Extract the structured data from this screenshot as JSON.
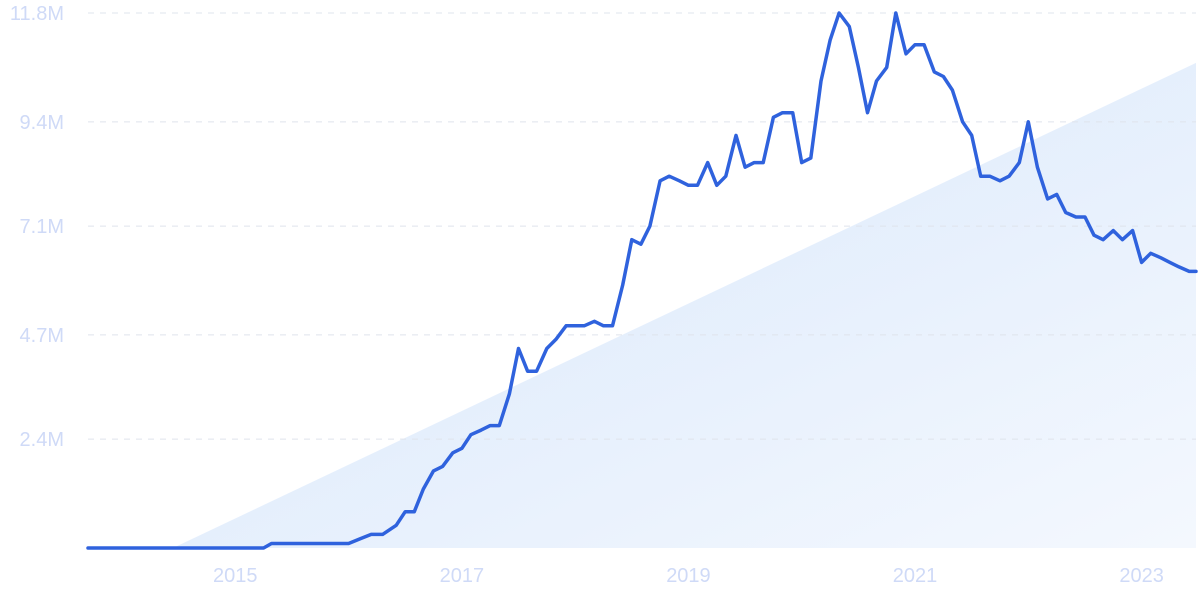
{
  "chart_data": {
    "type": "line",
    "title": "",
    "xlabel": "",
    "ylabel": "",
    "grid": true,
    "legend": "none",
    "xlim": [
      2013.7,
      2023.48
    ],
    "ylim": [
      0,
      11.8
    ],
    "y_ticks": [
      {
        "value": 2.4,
        "label": "2.4M"
      },
      {
        "value": 4.7,
        "label": "4.7M"
      },
      {
        "value": 7.1,
        "label": "7.1M"
      },
      {
        "value": 9.4,
        "label": "9.4M"
      },
      {
        "value": 11.8,
        "label": "11.8M"
      }
    ],
    "x_ticks": [
      {
        "value": 2015,
        "label": "2015"
      },
      {
        "value": 2017,
        "label": "2017"
      },
      {
        "value": 2019,
        "label": "2019"
      },
      {
        "value": 2021,
        "label": "2021"
      },
      {
        "value": 2023,
        "label": "2023"
      }
    ],
    "trend_area": {
      "x": [
        2014.45,
        2023.48
      ],
      "y": [
        0,
        10.7
      ]
    },
    "series": [
      {
        "x": [
          2013.7,
          2014.0,
          2014.5,
          2015.0,
          2015.25,
          2015.32,
          2015.5,
          2015.75,
          2016.0,
          2016.1,
          2016.2,
          2016.3,
          2016.42,
          2016.5,
          2016.58,
          2016.66,
          2016.75,
          2016.83,
          2016.92,
          2017.0,
          2017.08,
          2017.17,
          2017.25,
          2017.33,
          2017.42,
          2017.5,
          2017.58,
          2017.66,
          2017.75,
          2017.83,
          2017.92,
          2018.0,
          2018.08,
          2018.17,
          2018.25,
          2018.33,
          2018.42,
          2018.5,
          2018.58,
          2018.66,
          2018.75,
          2018.83,
          2018.92,
          2019.0,
          2019.08,
          2019.17,
          2019.25,
          2019.33,
          2019.42,
          2019.5,
          2019.58,
          2019.66,
          2019.75,
          2019.83,
          2019.92,
          2020.0,
          2020.08,
          2020.17,
          2020.25,
          2020.33,
          2020.42,
          2020.5,
          2020.58,
          2020.66,
          2020.75,
          2020.83,
          2020.92,
          2021.0,
          2021.08,
          2021.17,
          2021.25,
          2021.33,
          2021.42,
          2021.5,
          2021.58,
          2021.66,
          2021.75,
          2021.83,
          2021.92,
          2022.0,
          2022.08,
          2022.17,
          2022.25,
          2022.33,
          2022.42,
          2022.5,
          2022.58,
          2022.66,
          2022.75,
          2022.83,
          2022.92,
          2023.0,
          2023.08,
          2023.17,
          2023.25,
          2023.33,
          2023.42,
          2023.48
        ],
        "values": [
          0,
          0,
          0,
          0,
          0,
          0.1,
          0.1,
          0.1,
          0.1,
          0.2,
          0.3,
          0.3,
          0.5,
          0.8,
          0.8,
          1.3,
          1.7,
          1.8,
          2.1,
          2.2,
          2.5,
          2.6,
          2.7,
          2.7,
          3.4,
          4.4,
          3.9,
          3.9,
          4.4,
          4.6,
          4.9,
          4.9,
          4.9,
          5.0,
          4.9,
          4.9,
          5.8,
          6.8,
          6.7,
          7.1,
          8.1,
          8.2,
          8.1,
          8.0,
          8.0,
          8.5,
          8.0,
          8.2,
          9.1,
          8.4,
          8.5,
          8.5,
          9.5,
          9.6,
          9.6,
          8.5,
          8.6,
          10.3,
          11.2,
          11.8,
          11.5,
          10.6,
          9.6,
          10.3,
          10.6,
          11.8,
          10.9,
          11.1,
          11.1,
          10.5,
          10.4,
          10.1,
          9.4,
          9.1,
          8.2,
          8.2,
          8.1,
          8.2,
          8.5,
          9.4,
          8.4,
          7.7,
          7.8,
          7.4,
          7.3,
          7.3,
          6.9,
          6.8,
          7.0,
          6.8,
          7.0,
          6.3,
          6.5,
          6.4,
          6.3,
          6.2,
          6.1,
          6.1
        ],
        "color": "#2f62dd"
      }
    ],
    "colors": {
      "line": "#2f62dd",
      "tick_text": "#cfdaf7",
      "grid": "#dfe4ec",
      "area_start": "#d6e6fb",
      "area_end": "#f4f8fe"
    }
  }
}
